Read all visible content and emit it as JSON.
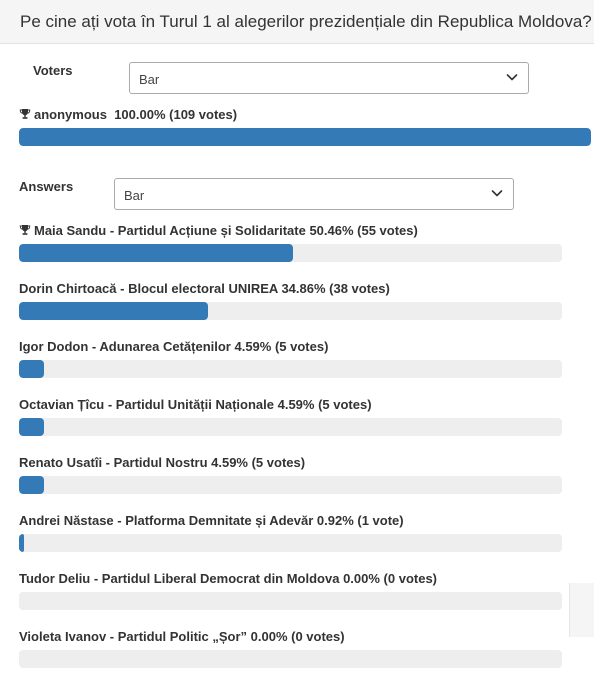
{
  "question": {
    "title": "Pe cine ați vota în Turul 1 al alegerilor prezidențiale din Republica Moldova?"
  },
  "voters": {
    "label": "Voters",
    "select_value": "Bar",
    "results": [
      {
        "name": "anonymous",
        "stats": "100.00% (109 votes)",
        "percent": 100,
        "votes": 109,
        "winner": true
      }
    ]
  },
  "answers": {
    "label": "Answers",
    "select_value": "Bar",
    "results": [
      {
        "label": "Maia Sandu - Partidul Acțiune și Solidaritate 50.46% (55 votes)",
        "percent": 50.46,
        "votes": 55,
        "winner": true
      },
      {
        "label": "Dorin Chirtoacă - Blocul electoral UNIREA 34.86% (38 votes)",
        "percent": 34.86,
        "votes": 38,
        "winner": false
      },
      {
        "label": "Igor Dodon - Adunarea Cetățenilor 4.59% (5 votes)",
        "percent": 4.59,
        "votes": 5,
        "winner": false
      },
      {
        "label": "Octavian Țîcu - Partidul Unității Naționale 4.59% (5 votes)",
        "percent": 4.59,
        "votes": 5,
        "winner": false
      },
      {
        "label": "Renato Usatîi - Partidul Nostru 4.59% (5 votes)",
        "percent": 4.59,
        "votes": 5,
        "winner": false
      },
      {
        "label": "Andrei Năstase - Platforma Demnitate și Adevăr 0.92% (1 vote)",
        "percent": 0.92,
        "votes": 1,
        "winner": false
      },
      {
        "label": "Tudor Deliu - Partidul Liberal Democrat din Moldova 0.00% (0 votes)",
        "percent": 0,
        "votes": 0,
        "winner": false
      },
      {
        "label": "Violeta Ivanov - Partidul Politic „Șor” 0.00% (0 votes)",
        "percent": 0,
        "votes": 0,
        "winner": false
      }
    ]
  },
  "colors": {
    "bar_fill": "#337ab7",
    "bar_track": "#eeeeee",
    "header_bg": "#f5f5f5"
  },
  "icons": {
    "winner": "trophy-icon",
    "select": "chevron-down-icon"
  }
}
